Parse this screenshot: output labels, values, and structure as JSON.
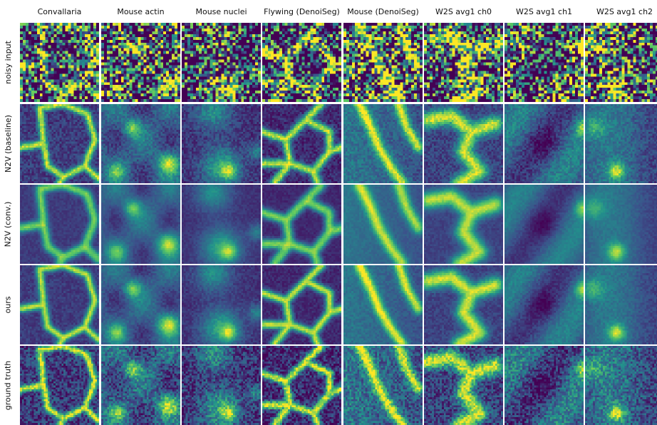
{
  "figure": {
    "columns": [
      {
        "title": "Convallaria",
        "key": "convallaria"
      },
      {
        "title": "Mouse actin",
        "key": "actin"
      },
      {
        "title": "Mouse nuclei",
        "key": "nuclei"
      },
      {
        "title": "Flywing (DenoiSeg)",
        "key": "flywing"
      },
      {
        "title": "Mouse (DenoiSeg)",
        "key": "mouse-denoiseg"
      },
      {
        "title": "W2S avg1 ch0",
        "key": "w2s-ch0"
      },
      {
        "title": "W2S avg1 ch1",
        "key": "w2s-ch1"
      },
      {
        "title": "W2S avg1 ch2",
        "key": "w2s-ch2"
      }
    ],
    "rows": [
      {
        "label": "noisy input",
        "key": "noisy"
      },
      {
        "label": "N2V (baseline)",
        "key": "n2v-baseline"
      },
      {
        "label": "N2V (conv.)",
        "key": "n2v-conv"
      },
      {
        "label": "ours",
        "key": "ours"
      },
      {
        "label": "ground truth",
        "key": "ground-truth"
      }
    ],
    "colormap": [
      "#440154",
      "#3b528b",
      "#21918c",
      "#5ec962",
      "#fde725"
    ],
    "background_color": "#ffffff"
  }
}
